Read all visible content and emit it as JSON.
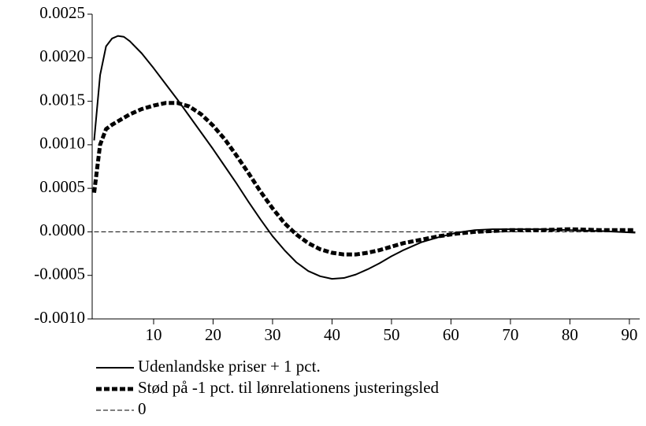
{
  "chart_data": {
    "type": "line",
    "x": [
      0,
      1,
      2,
      3,
      4,
      5,
      6,
      8,
      10,
      12,
      14,
      16,
      18,
      20,
      22,
      24,
      26,
      28,
      30,
      32,
      34,
      36,
      38,
      40,
      42,
      44,
      46,
      48,
      50,
      52,
      55,
      58,
      61,
      64,
      67,
      70,
      75,
      80,
      85,
      91
    ],
    "series": [
      {
        "name": "Udenlandske priser + 1 pct.",
        "color": "#000000",
        "style": "solid",
        "values": [
          0.00105,
          0.0018,
          0.00213,
          0.00222,
          0.00225,
          0.00224,
          0.00219,
          0.00205,
          0.00188,
          0.0017,
          0.00152,
          0.00133,
          0.00114,
          0.00095,
          0.00075,
          0.00055,
          0.00034,
          0.00014,
          -5e-05,
          -0.00021,
          -0.00035,
          -0.00045,
          -0.00051,
          -0.00054,
          -0.00053,
          -0.00049,
          -0.00043,
          -0.00036,
          -0.00028,
          -0.00021,
          -0.00012,
          -6e-05,
          -1e-05,
          2e-05,
          3e-05,
          3e-05,
          3e-05,
          2e-05,
          1e-05,
          -1e-05
        ]
      },
      {
        "name": "Stød på -1 pct. til lønrelationens justeringsled",
        "color": "#000000",
        "style": "bold-dashed",
        "values": [
          0.00045,
          0.001,
          0.00118,
          0.00123,
          0.00127,
          0.00131,
          0.00135,
          0.00141,
          0.00145,
          0.00148,
          0.00148,
          0.00144,
          0.00135,
          0.00122,
          0.00106,
          0.00087,
          0.00067,
          0.00046,
          0.00027,
          0.0001,
          -3e-05,
          -0.00013,
          -0.0002,
          -0.00024,
          -0.00026,
          -0.00026,
          -0.00024,
          -0.00021,
          -0.00017,
          -0.00013,
          -9e-05,
          -5e-05,
          -2e-05,
          0,
          1e-05,
          2e-05,
          2e-05,
          3e-05,
          2e-05,
          2e-05
        ]
      },
      {
        "name": "0",
        "color": "#000000",
        "style": "thin-dashed",
        "values": [
          0,
          0,
          0,
          0,
          0,
          0,
          0,
          0,
          0,
          0,
          0,
          0,
          0,
          0,
          0,
          0,
          0,
          0,
          0,
          0,
          0,
          0,
          0,
          0,
          0,
          0,
          0,
          0,
          0,
          0,
          0,
          0,
          0,
          0,
          0,
          0,
          0,
          0,
          0,
          0
        ]
      }
    ],
    "xlim": [
      0,
      92
    ],
    "xticks": [
      10,
      20,
      30,
      40,
      50,
      60,
      70,
      80,
      90
    ],
    "ylim": [
      -0.001,
      0.0025
    ],
    "yticks": [
      {
        "value": -0.001,
        "label": "-0.0010"
      },
      {
        "value": -0.0005,
        "label": "-0.0005"
      },
      {
        "value": 0,
        "label": "0.0000"
      },
      {
        "value": 0.0005,
        "label": "0.0005"
      },
      {
        "value": 0.001,
        "label": "0.0010"
      },
      {
        "value": 0.0015,
        "label": "0.0015"
      },
      {
        "value": 0.002,
        "label": "0.0020"
      },
      {
        "value": 0.0025,
        "label": "0.0025"
      }
    ],
    "legend": "bottom-left"
  }
}
